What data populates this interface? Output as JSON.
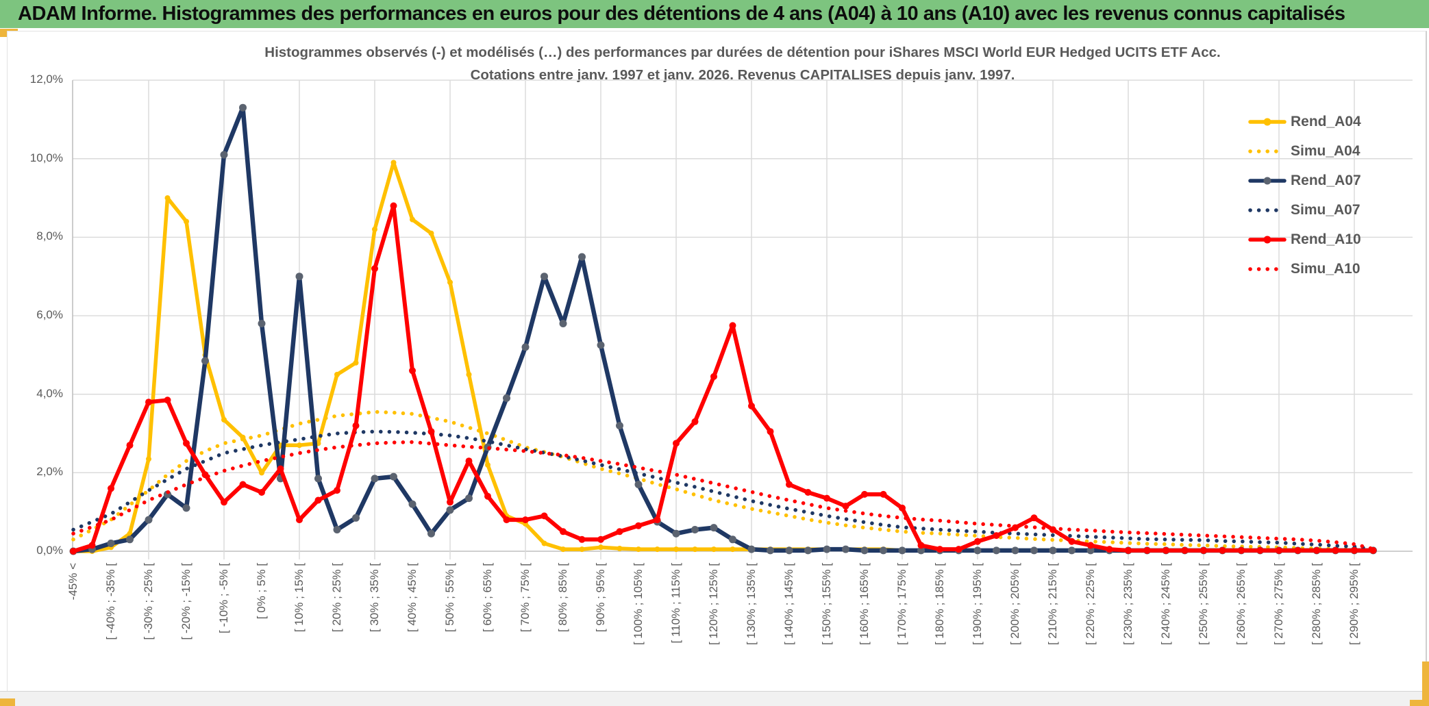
{
  "banner": {
    "title": "ADAM Informe. Histogrammes des performances en euros pour des détentions de 4 ans (A04) à 10 ans (A10) avec les revenus connus capitalisés"
  },
  "colors": {
    "banner_green": "#7dc47f",
    "gold_accent": "#eeb53c",
    "grid": "#d9d9d9",
    "axis_line": "#bfbfbf",
    "axis_text": "#595959",
    "series_gold": "#FFC000",
    "series_navy": "#1F3864",
    "series_navy_marker": "#5b6370",
    "series_red": "#FF0000"
  },
  "chart_data": {
    "type": "line",
    "title_line1": "Histogrammes observés (-) et modélisés (…) des performances par durées de détention pour iShares MSCI World EUR Hedged UCITS ETF Acc.",
    "title_line2": "Cotations entre janv. 1997 et janv. 2026. Revenus CAPITALISES depuis janv. 1997.",
    "grid": true,
    "legend_position": "right",
    "ylim": [
      0,
      12
    ],
    "y_tick_values": [
      0,
      2,
      4,
      6,
      8,
      10,
      12
    ],
    "y_tick_labels": [
      "0,0%",
      "2,0%",
      "4,0%",
      "6,0%",
      "8,0%",
      "10,0%",
      "12,0%"
    ],
    "categories": [
      "-45% <",
      "",
      "[ -40% ; -35% [",
      "",
      "[ -30% ; -25% [",
      "",
      "[ -20% ; -15% [",
      "",
      "[ -10% ; -5% [",
      "",
      "[ 0% ; 5% [",
      "",
      "[ 10% ; 15% [",
      "",
      "[ 20% ; 25% [",
      "",
      "[ 30% ; 35% [",
      "",
      "[ 40% ; 45% [",
      "",
      "[ 50% ; 55% [",
      "",
      "[ 60% ; 65% [",
      "",
      "[ 70% ; 75% [",
      "",
      "[ 80% ; 85% [",
      "",
      "[ 90% ; 95% [",
      "",
      "[ 100% ; 105% [",
      "",
      "[ 110% ; 115% [",
      "",
      "[ 120% ; 125% [",
      "",
      "[ 130% ; 135% [",
      "",
      "[ 140% ; 145% [",
      "",
      "[ 150% ; 155% [",
      "",
      "[ 160% ; 165% [",
      "",
      "[ 170% ; 175% [",
      "",
      "[ 180% ; 185% [",
      "",
      "[ 190% ; 195% [",
      "",
      "[ 200% ; 205% [",
      "",
      "[ 210% ; 215% [",
      "",
      "[ 220% ; 225% [",
      "",
      "[ 230% ; 235% [",
      "",
      "[ 240% ; 245% [",
      "",
      "[ 250% ; 255% [",
      "",
      "[ 260% ; 265% [",
      "",
      "[ 270% ; 275% [",
      "",
      "[ 280% ; 285% [",
      "",
      "[ 290% ; 295% [",
      ""
    ],
    "series": [
      {
        "name": "Rend_A04",
        "style": "solid",
        "color": "#FFC000",
        "marker_color": "#FFC000",
        "values": [
          0.0,
          0.0,
          0.1,
          0.45,
          2.35,
          9.0,
          8.4,
          5.0,
          3.35,
          2.9,
          2.0,
          2.7,
          2.7,
          2.75,
          4.5,
          4.8,
          8.2,
          9.9,
          8.45,
          8.1,
          6.85,
          4.5,
          2.2,
          0.9,
          0.7,
          0.2,
          0.05,
          0.05,
          0.1,
          0.07,
          0.05,
          0.05,
          0.05,
          0.05,
          0.05,
          0.05,
          0.05,
          0.05,
          0.05,
          0.05,
          0.05,
          0.05,
          0.05,
          0.05,
          0.02,
          0.02,
          0.02,
          0.02,
          0.02,
          0.02,
          0.02,
          0.02,
          0.02,
          0.02,
          0.02,
          0.02,
          0.02,
          0.02,
          0.02,
          0.02,
          0.02,
          0.02,
          0.02,
          0.02,
          0.02,
          0.02,
          0.02,
          0.02,
          0.02,
          0.02
        ]
      },
      {
        "name": "Simu_A04",
        "style": "dotted",
        "color": "#FFC000",
        "values": [
          0.3,
          0.55,
          0.8,
          1.18,
          1.55,
          1.95,
          2.3,
          2.55,
          2.75,
          2.85,
          2.95,
          3.1,
          3.25,
          3.35,
          3.45,
          3.5,
          3.55,
          3.53,
          3.5,
          3.4,
          3.3,
          3.15,
          3.0,
          2.83,
          2.65,
          2.53,
          2.4,
          2.25,
          2.1,
          1.98,
          1.85,
          1.71,
          1.58,
          1.44,
          1.3,
          1.19,
          1.08,
          0.99,
          0.9,
          0.81,
          0.73,
          0.66,
          0.6,
          0.55,
          0.5,
          0.47,
          0.45,
          0.42,
          0.39,
          0.36,
          0.34,
          0.31,
          0.29,
          0.27,
          0.25,
          0.23,
          0.21,
          0.19,
          0.18,
          0.16,
          0.15,
          0.13,
          0.12,
          0.11,
          0.1,
          0.08,
          0.07,
          0.06,
          0.05,
          0.02
        ]
      },
      {
        "name": "Rend_A07",
        "style": "solid",
        "color": "#1F3864",
        "marker_color": "#5b6370",
        "values": [
          0.0,
          0.05,
          0.2,
          0.3,
          0.8,
          1.45,
          1.1,
          4.85,
          10.1,
          11.3,
          5.8,
          1.85,
          7.0,
          1.85,
          0.55,
          0.85,
          1.85,
          1.9,
          1.2,
          0.45,
          1.05,
          1.35,
          2.65,
          3.9,
          5.2,
          7.0,
          5.8,
          7.5,
          5.25,
          3.2,
          1.7,
          0.75,
          0.45,
          0.55,
          0.6,
          0.3,
          0.05,
          0.02,
          0.02,
          0.02,
          0.05,
          0.05,
          0.02,
          0.02,
          0.02,
          0.02,
          0.02,
          0.02,
          0.02,
          0.02,
          0.02,
          0.02,
          0.02,
          0.02,
          0.02,
          0.02,
          0.02,
          0.02,
          0.02,
          0.02,
          0.02,
          0.02,
          0.02,
          0.02,
          0.02,
          0.02,
          0.02,
          0.02,
          0.02,
          0.02
        ]
      },
      {
        "name": "Simu_A07",
        "style": "dotted",
        "color": "#1F3864",
        "values": [
          0.55,
          0.75,
          0.95,
          1.25,
          1.55,
          1.83,
          2.1,
          2.3,
          2.5,
          2.6,
          2.7,
          2.78,
          2.85,
          2.93,
          3.0,
          3.03,
          3.05,
          3.04,
          3.02,
          2.99,
          2.95,
          2.88,
          2.8,
          2.7,
          2.6,
          2.51,
          2.42,
          2.31,
          2.2,
          2.09,
          1.98,
          1.87,
          1.75,
          1.64,
          1.52,
          1.4,
          1.28,
          1.18,
          1.08,
          0.99,
          0.9,
          0.82,
          0.74,
          0.67,
          0.61,
          0.58,
          0.55,
          0.52,
          0.5,
          0.47,
          0.45,
          0.43,
          0.41,
          0.39,
          0.37,
          0.35,
          0.33,
          0.31,
          0.3,
          0.29,
          0.28,
          0.26,
          0.25,
          0.23,
          0.22,
          0.19,
          0.17,
          0.14,
          0.12,
          0.05
        ]
      },
      {
        "name": "Rend_A10",
        "style": "solid",
        "color": "#FF0000",
        "marker_color": "#FF0000",
        "values": [
          0.0,
          0.15,
          1.6,
          2.7,
          3.8,
          3.85,
          2.75,
          1.95,
          1.25,
          1.7,
          1.5,
          2.1,
          0.8,
          1.3,
          1.55,
          3.2,
          7.2,
          8.8,
          4.6,
          3.05,
          1.25,
          2.3,
          1.4,
          0.8,
          0.8,
          0.9,
          0.5,
          0.3,
          0.3,
          0.5,
          0.65,
          0.8,
          2.75,
          3.3,
          4.45,
          5.75,
          3.7,
          3.05,
          1.7,
          1.5,
          1.35,
          1.15,
          1.45,
          1.45,
          1.1,
          0.15,
          0.05,
          0.05,
          0.25,
          0.4,
          0.6,
          0.85,
          0.55,
          0.25,
          0.15,
          0.05,
          0.02,
          0.02,
          0.02,
          0.02,
          0.02,
          0.02,
          0.02,
          0.02,
          0.02,
          0.02,
          0.02,
          0.02,
          0.02,
          0.02
        ]
      },
      {
        "name": "Simu_A10",
        "style": "dotted",
        "color": "#FF0000",
        "values": [
          0.45,
          0.62,
          0.8,
          1.05,
          1.3,
          1.5,
          1.7,
          1.88,
          2.05,
          2.18,
          2.3,
          2.4,
          2.5,
          2.58,
          2.65,
          2.7,
          2.75,
          2.77,
          2.78,
          2.74,
          2.7,
          2.66,
          2.63,
          2.59,
          2.55,
          2.5,
          2.45,
          2.38,
          2.3,
          2.22,
          2.13,
          2.04,
          1.95,
          1.84,
          1.73,
          1.62,
          1.51,
          1.4,
          1.3,
          1.2,
          1.1,
          1.03,
          0.96,
          0.9,
          0.85,
          0.81,
          0.78,
          0.74,
          0.7,
          0.67,
          0.64,
          0.61,
          0.58,
          0.55,
          0.53,
          0.5,
          0.48,
          0.46,
          0.44,
          0.42,
          0.4,
          0.38,
          0.36,
          0.34,
          0.32,
          0.3,
          0.27,
          0.23,
          0.18,
          0.06
        ]
      }
    ]
  }
}
